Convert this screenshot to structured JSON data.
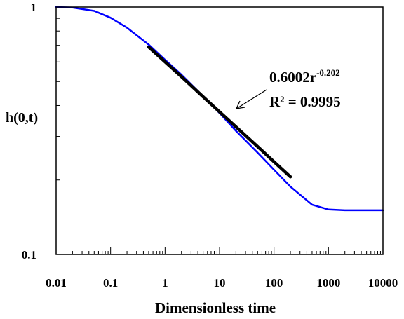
{
  "chart_data": {
    "type": "line",
    "xlabel": "Dimensionless time",
    "ylabel": "h(0,t)",
    "xscale": "log",
    "yscale": "log",
    "xlim": [
      0.01,
      10000
    ],
    "ylim": [
      0.1,
      1
    ],
    "x_tick_labels": [
      "0.01",
      "0.1",
      "1",
      "10",
      "100",
      "1000",
      "10000"
    ],
    "x_ticks": [
      0.01,
      0.1,
      1,
      10,
      100,
      1000,
      10000
    ],
    "y_tick_labels": [
      "1",
      "0.1"
    ],
    "y_ticks": [
      1,
      0.1
    ],
    "grid": false,
    "series": [
      {
        "color": "#0000ff",
        "x": [
          0.01,
          0.02,
          0.05,
          0.1,
          0.2,
          0.5,
          1,
          2,
          5,
          10,
          20,
          50,
          100,
          200,
          500,
          1000,
          2000,
          5000,
          10000
        ],
        "y": [
          1.0,
          0.995,
          0.965,
          0.905,
          0.825,
          0.705,
          0.612,
          0.533,
          0.436,
          0.373,
          0.316,
          0.258,
          0.22,
          0.188,
          0.159,
          0.152,
          0.151,
          0.151,
          0.151
        ]
      },
      {
        "color": "#000000",
        "x": [
          0.5,
          1,
          2,
          5,
          10,
          20,
          50,
          100,
          200
        ],
        "y": [
          0.689,
          0.6002,
          0.523,
          0.434,
          0.3771,
          0.328,
          0.273,
          0.2369,
          0.206
        ]
      }
    ],
    "annotation": {
      "equation": "0.6002r",
      "exponent": "-0.202",
      "r_squared": "R² = 0.9995"
    }
  }
}
